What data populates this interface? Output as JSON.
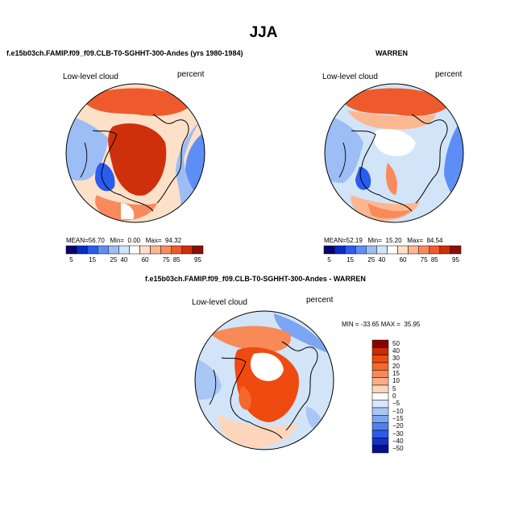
{
  "page": {
    "title": "JJA"
  },
  "panels": [
    {
      "subtitle": "f.e15b03ch.FAMIP.f09_f09.CLB-T0-SGHHT-300-Andes (yrs 1980-1984)",
      "left_label": "Low-level cloud",
      "right_label": "percent",
      "stats": {
        "mean_label": "MEAN=",
        "mean": "56.70",
        "min_label": "Min=",
        "min": "0.00",
        "max_label": "Max=",
        "max": "94.32"
      }
    },
    {
      "subtitle": "WARREN",
      "left_label": "Low-level cloud",
      "right_label": "percent",
      "stats": {
        "mean_label": "MEAN=",
        "mean": "52.19",
        "min_label": "Min=",
        "min": "15.20",
        "max_label": "Max=",
        "max": "84.54"
      }
    },
    {
      "subtitle": "f.e15b03ch.FAMIP.f09_f09.CLB-T0-SGHHT-300-Andes - WARREN",
      "left_label": "Low-level cloud",
      "right_label": "percent",
      "stats_text": "MIN = -33.65 MAX =  35.95"
    }
  ],
  "colorbar_abs": {
    "colors": [
      "#08006e",
      "#0a2cc0",
      "#2a5cf0",
      "#5e8ef5",
      "#9cbdf5",
      "#d2e4f7",
      "#ffffff",
      "#fde0c8",
      "#fbb790",
      "#f98a5c",
      "#ef5a2c",
      "#cf300c",
      "#8d0f0a"
    ],
    "labels": [
      "5",
      "15",
      "25",
      "40",
      "60",
      "75",
      "85",
      "95"
    ],
    "label_after_box": [
      0,
      2,
      4,
      5,
      7,
      9,
      10,
      12
    ]
  },
  "colorbar_diff": {
    "colors": [
      "#8a0000",
      "#c92c00",
      "#ef4a10",
      "#f56a2c",
      "#f88a58",
      "#faae88",
      "#fdd6bc",
      "#ffffff",
      "#d6e6fb",
      "#a8c6f6",
      "#7ca6f4",
      "#4f80ee",
      "#2a5ce8",
      "#1432c8",
      "#06108a"
    ],
    "labels": [
      "50",
      "40",
      "30",
      "20",
      "15",
      "10",
      "5",
      "0",
      "−5",
      "−10",
      "−15",
      "−20",
      "−30",
      "−40",
      "−50"
    ]
  },
  "map_colors": {
    "deep_red": "#c9300a",
    "red": "#ef5a2c",
    "orange": "#f98a5c",
    "peach": "#fbb790",
    "light_peach": "#fde0c8",
    "white": "#ffffff",
    "pale_blue": "#d2e4f7",
    "light_blue": "#9cbdf5",
    "blue": "#5e8ef5",
    "mid_blue": "#2a5cf0",
    "dark_blue": "#0a2cc0"
  }
}
